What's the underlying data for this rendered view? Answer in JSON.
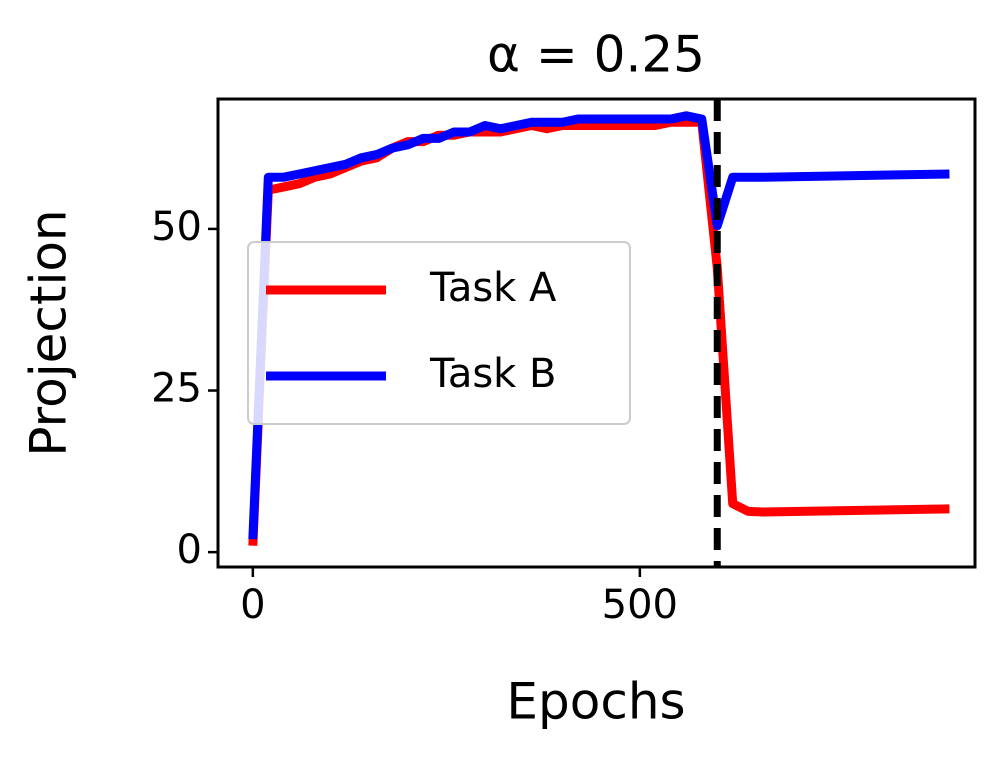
{
  "chart_data": {
    "type": "line",
    "title": "α = 0.25",
    "x_label": "Epochs",
    "y_label": "Projection",
    "x": [
      0,
      20,
      40,
      60,
      80,
      100,
      120,
      140,
      160,
      180,
      200,
      220,
      240,
      260,
      280,
      300,
      320,
      340,
      360,
      380,
      400,
      420,
      440,
      460,
      480,
      500,
      520,
      540,
      560,
      580,
      600,
      620,
      640,
      660,
      900
    ],
    "series": [
      {
        "name": "Task A",
        "color": "#ff0000",
        "values": [
          1,
          56,
          56.5,
          57,
          58,
          58.5,
          59.5,
          60.5,
          61,
          62.5,
          63.5,
          63.5,
          64.5,
          64.5,
          65,
          65,
          65,
          65.5,
          66,
          65.5,
          66,
          66,
          66,
          66,
          66,
          66,
          66,
          66.5,
          66.5,
          66.5,
          44,
          7.5,
          6.3,
          6.2,
          6.7
        ]
      },
      {
        "name": "Task B",
        "color": "#0000ff",
        "values": [
          2,
          58,
          58,
          58.5,
          59,
          59.5,
          60,
          61,
          61.5,
          62.5,
          63,
          64,
          64,
          65,
          65,
          66,
          65.5,
          66,
          66.5,
          66.5,
          66.5,
          67,
          67,
          67,
          67,
          67,
          67,
          67,
          67.5,
          67,
          50.5,
          58,
          58,
          58,
          58.5
        ]
      }
    ],
    "vline": 600,
    "xlim": [
      -45,
      933
    ],
    "xticks": [
      0,
      500
    ],
    "ylim": [
      -2.3,
      70.1
    ],
    "yticks": [
      0,
      25,
      50
    ],
    "grid": false,
    "legend": "center left"
  }
}
